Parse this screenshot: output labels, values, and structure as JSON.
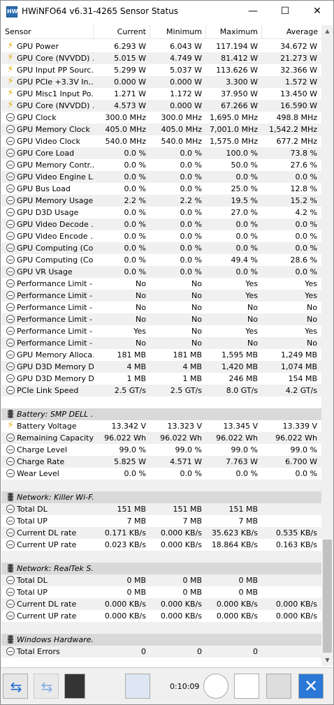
{
  "window": {
    "title": "HWiNFO64 v6.31-4265 Sensor Status",
    "minimize": "—",
    "maximize": "☐",
    "close": "✕",
    "icon": "HW"
  },
  "columns": [
    "Sensor",
    "Current",
    "Minimum",
    "Maximum",
    "Average"
  ],
  "rows": [
    {
      "icon": "bolt",
      "name": "GPU Power",
      "cur": "6.293 W",
      "min": "6.043 W",
      "max": "117.194 W",
      "avg": "34.672 W"
    },
    {
      "icon": "bolt",
      "name": "GPU Core (NVVDD) ...",
      "cur": "5.015 W",
      "min": "4.749 W",
      "max": "81.412 W",
      "avg": "21.273 W"
    },
    {
      "icon": "bolt",
      "name": "GPU Input PP Sourc...",
      "cur": "5.299 W",
      "min": "5.037 W",
      "max": "113.626 W",
      "avg": "32.366 W"
    },
    {
      "icon": "bolt",
      "name": "GPU PCIe +3.3V In...",
      "cur": "0.000 W",
      "min": "0.000 W",
      "max": "3.300 W",
      "avg": "1.572 W"
    },
    {
      "icon": "bolt",
      "name": "GPU Misc1 Input Po...",
      "cur": "1.271 W",
      "min": "1.172 W",
      "max": "37.950 W",
      "avg": "13.450 W"
    },
    {
      "icon": "bolt",
      "name": "GPU Core (NVVDD) ...",
      "cur": "4.573 W",
      "min": "0.000 W",
      "max": "67.266 W",
      "avg": "16.590 W"
    },
    {
      "icon": "clock",
      "name": "GPU Clock",
      "cur": "300.0 MHz",
      "min": "300.0 MHz",
      "max": "1,695.0 MHz",
      "avg": "498.8 MHz"
    },
    {
      "icon": "clock",
      "name": "GPU Memory Clock",
      "cur": "405.0 MHz",
      "min": "405.0 MHz",
      "max": "7,001.0 MHz",
      "avg": "1,542.2 MHz"
    },
    {
      "icon": "clock",
      "name": "GPU Video Clock",
      "cur": "540.0 MHz",
      "min": "540.0 MHz",
      "max": "1,575.0 MHz",
      "avg": "677.2 MHz"
    },
    {
      "icon": "clock",
      "name": "GPU Core Load",
      "cur": "0.0 %",
      "min": "0.0 %",
      "max": "100.0 %",
      "avg": "73.8 %"
    },
    {
      "icon": "clock",
      "name": "GPU Memory Contr...",
      "cur": "0.0 %",
      "min": "0.0 %",
      "max": "50.0 %",
      "avg": "27.6 %"
    },
    {
      "icon": "clock",
      "name": "GPU Video Engine L...",
      "cur": "0.0 %",
      "min": "0.0 %",
      "max": "0.0 %",
      "avg": "0.0 %"
    },
    {
      "icon": "clock",
      "name": "GPU Bus Load",
      "cur": "0.0 %",
      "min": "0.0 %",
      "max": "25.0 %",
      "avg": "12.8 %"
    },
    {
      "icon": "clock",
      "name": "GPU Memory Usage",
      "cur": "2.2 %",
      "min": "2.2 %",
      "max": "19.5 %",
      "avg": "15.2 %"
    },
    {
      "icon": "clock",
      "name": "GPU D3D Usage",
      "cur": "0.0 %",
      "min": "0.0 %",
      "max": "27.0 %",
      "avg": "4.2 %"
    },
    {
      "icon": "clock",
      "name": "GPU Video Decode ...",
      "cur": "0.0 %",
      "min": "0.0 %",
      "max": "0.0 %",
      "avg": "0.0 %"
    },
    {
      "icon": "clock",
      "name": "GPU Video Encode ...",
      "cur": "0.0 %",
      "min": "0.0 %",
      "max": "0.0 %",
      "avg": "0.0 %"
    },
    {
      "icon": "clock",
      "name": "GPU Computing (Co...",
      "cur": "0.0 %",
      "min": "0.0 %",
      "max": "0.0 %",
      "avg": "0.0 %"
    },
    {
      "icon": "clock",
      "name": "GPU Computing (Co...",
      "cur": "0.0 %",
      "min": "0.0 %",
      "max": "49.4 %",
      "avg": "28.6 %"
    },
    {
      "icon": "clock",
      "name": "GPU VR Usage",
      "cur": "0.0 %",
      "min": "0.0 %",
      "max": "0.0 %",
      "avg": "0.0 %"
    },
    {
      "icon": "clock",
      "name": "Performance Limit - ...",
      "cur": "No",
      "min": "No",
      "max": "Yes",
      "avg": "Yes"
    },
    {
      "icon": "clock",
      "name": "Performance Limit - ...",
      "cur": "No",
      "min": "No",
      "max": "Yes",
      "avg": "Yes"
    },
    {
      "icon": "clock",
      "name": "Performance Limit - ...",
      "cur": "No",
      "min": "No",
      "max": "No",
      "avg": "No"
    },
    {
      "icon": "clock",
      "name": "Performance Limit - ...",
      "cur": "No",
      "min": "No",
      "max": "No",
      "avg": "No"
    },
    {
      "icon": "clock",
      "name": "Performance Limit - ...",
      "cur": "Yes",
      "min": "No",
      "max": "Yes",
      "avg": "Yes"
    },
    {
      "icon": "clock",
      "name": "Performance Limit - ...",
      "cur": "No",
      "min": "No",
      "max": "No",
      "avg": "No"
    },
    {
      "icon": "clock",
      "name": "GPU Memory Alloca...",
      "cur": "181 MB",
      "min": "181 MB",
      "max": "1,595 MB",
      "avg": "1,249 MB"
    },
    {
      "icon": "clock",
      "name": "GPU D3D Memory D...",
      "cur": "4 MB",
      "min": "4 MB",
      "max": "1,420 MB",
      "avg": "1,074 MB"
    },
    {
      "icon": "clock",
      "name": "GPU D3D Memory D...",
      "cur": "1 MB",
      "min": "1 MB",
      "max": "246 MB",
      "avg": "154 MB"
    },
    {
      "icon": "clock",
      "name": "PCIe Link Speed",
      "cur": "2.5 GT/s",
      "min": "2.5 GT/s",
      "max": "8.0 GT/s",
      "avg": "4.2 GT/s"
    },
    {
      "icon": "",
      "name": "",
      "cur": "",
      "min": "",
      "max": "",
      "avg": ""
    },
    {
      "icon": "chip",
      "group": true,
      "name": "Battery: SMP DELL ...",
      "cur": "",
      "min": "",
      "max": "",
      "avg": ""
    },
    {
      "icon": "bolt",
      "name": "Battery Voltage",
      "cur": "13.342 V",
      "min": "13.323 V",
      "max": "13.345 V",
      "avg": "13.339 V"
    },
    {
      "icon": "clock",
      "name": "Remaining Capacity",
      "cur": "96.022 Wh",
      "min": "96.022 Wh",
      "max": "96.022 Wh",
      "avg": "96.022 Wh"
    },
    {
      "icon": "clock",
      "name": "Charge Level",
      "cur": "99.0 %",
      "min": "99.0 %",
      "max": "99.0 %",
      "avg": "99.0 %"
    },
    {
      "icon": "clock",
      "name": "Charge Rate",
      "cur": "5.825 W",
      "min": "4.571 W",
      "max": "7.763 W",
      "avg": "6.700 W"
    },
    {
      "icon": "clock",
      "name": "Wear Level",
      "cur": "0.0 %",
      "min": "0.0 %",
      "max": "0.0 %",
      "avg": "0.0 %"
    },
    {
      "icon": "",
      "name": "",
      "cur": "",
      "min": "",
      "max": "",
      "avg": ""
    },
    {
      "icon": "chip",
      "group": true,
      "name": "Network: Killer Wi-F...",
      "cur": "",
      "min": "",
      "max": "",
      "avg": ""
    },
    {
      "icon": "clock",
      "name": "Total DL",
      "cur": "151 MB",
      "min": "151 MB",
      "max": "151 MB",
      "avg": ""
    },
    {
      "icon": "clock",
      "name": "Total UP",
      "cur": "7 MB",
      "min": "7 MB",
      "max": "7 MB",
      "avg": ""
    },
    {
      "icon": "clock",
      "name": "Current DL rate",
      "cur": "0.171 KB/s",
      "min": "0.000 KB/s",
      "max": "35.623 KB/s",
      "avg": "0.535 KB/s"
    },
    {
      "icon": "clock",
      "name": "Current UP rate",
      "cur": "0.023 KB/s",
      "min": "0.000 KB/s",
      "max": "18.864 KB/s",
      "avg": "0.163 KB/s"
    },
    {
      "icon": "",
      "name": "",
      "cur": "",
      "min": "",
      "max": "",
      "avg": ""
    },
    {
      "icon": "chip",
      "group": true,
      "name": "Network: RealTek S...",
      "cur": "",
      "min": "",
      "max": "",
      "avg": ""
    },
    {
      "icon": "clock",
      "name": "Total DL",
      "cur": "0 MB",
      "min": "0 MB",
      "max": "0 MB",
      "avg": ""
    },
    {
      "icon": "clock",
      "name": "Total UP",
      "cur": "0 MB",
      "min": "0 MB",
      "max": "0 MB",
      "avg": ""
    },
    {
      "icon": "clock",
      "name": "Current DL rate",
      "cur": "0.000 KB/s",
      "min": "0.000 KB/s",
      "max": "0.000 KB/s",
      "avg": "0.000 KB/s"
    },
    {
      "icon": "clock",
      "name": "Current UP rate",
      "cur": "0.000 KB/s",
      "min": "0.000 KB/s",
      "max": "0.000 KB/s",
      "avg": "0.000 KB/s"
    },
    {
      "icon": "",
      "name": "",
      "cur": "",
      "min": "",
      "max": "",
      "avg": ""
    },
    {
      "icon": "chip",
      "group": true,
      "name": "Windows Hardware...",
      "cur": "",
      "min": "",
      "max": "",
      "avg": ""
    },
    {
      "icon": "clock",
      "name": "Total Errors",
      "cur": "0",
      "min": "0",
      "max": "0",
      "avg": ""
    }
  ],
  "toolbar": {
    "elapsed": "0:10:09"
  }
}
